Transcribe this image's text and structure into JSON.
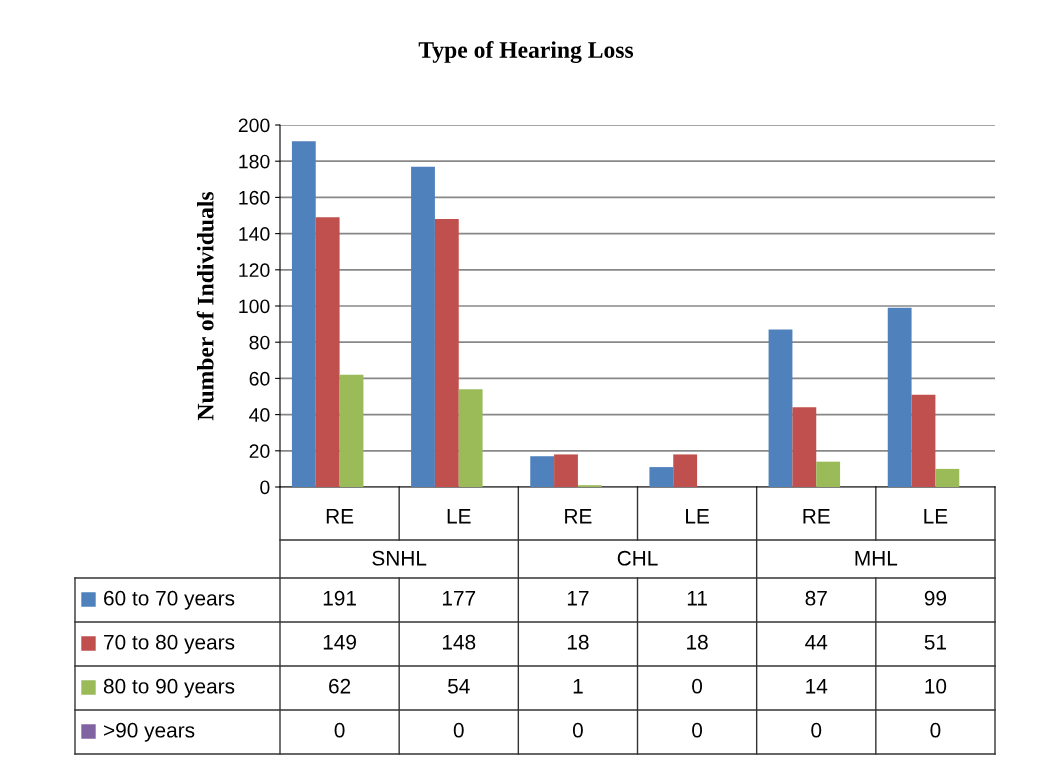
{
  "chart_data": {
    "type": "bar",
    "title": "Type of Hearing Loss",
    "ylabel": "Number of Individuals",
    "categories": [
      "RE",
      "LE",
      "RE",
      "LE",
      "RE",
      "LE"
    ],
    "annotations": [
      "SNHL",
      "CHL",
      "MHL"
    ],
    "series": [
      {
        "name": "60 to 70 years",
        "color": "#4f81bd",
        "values": [
          191,
          177,
          17,
          11,
          87,
          99
        ]
      },
      {
        "name": "70 to 80 years",
        "color": "#c0504d",
        "values": [
          149,
          148,
          18,
          18,
          44,
          51
        ]
      },
      {
        "name": "80 to 90 years",
        "color": "#9bbb59",
        "values": [
          62,
          54,
          1,
          0,
          14,
          10
        ]
      },
      {
        "name": ">90 years",
        "color": "#8064a2",
        "values": [
          0,
          0,
          0,
          0,
          0,
          0
        ]
      }
    ],
    "ylim": [
      0,
      200
    ],
    "yticks": [
      0,
      20,
      40,
      60,
      80,
      100,
      120,
      140,
      160,
      180,
      200
    ],
    "grid": "y",
    "legend": "bottom",
    "data_labels": true
  }
}
